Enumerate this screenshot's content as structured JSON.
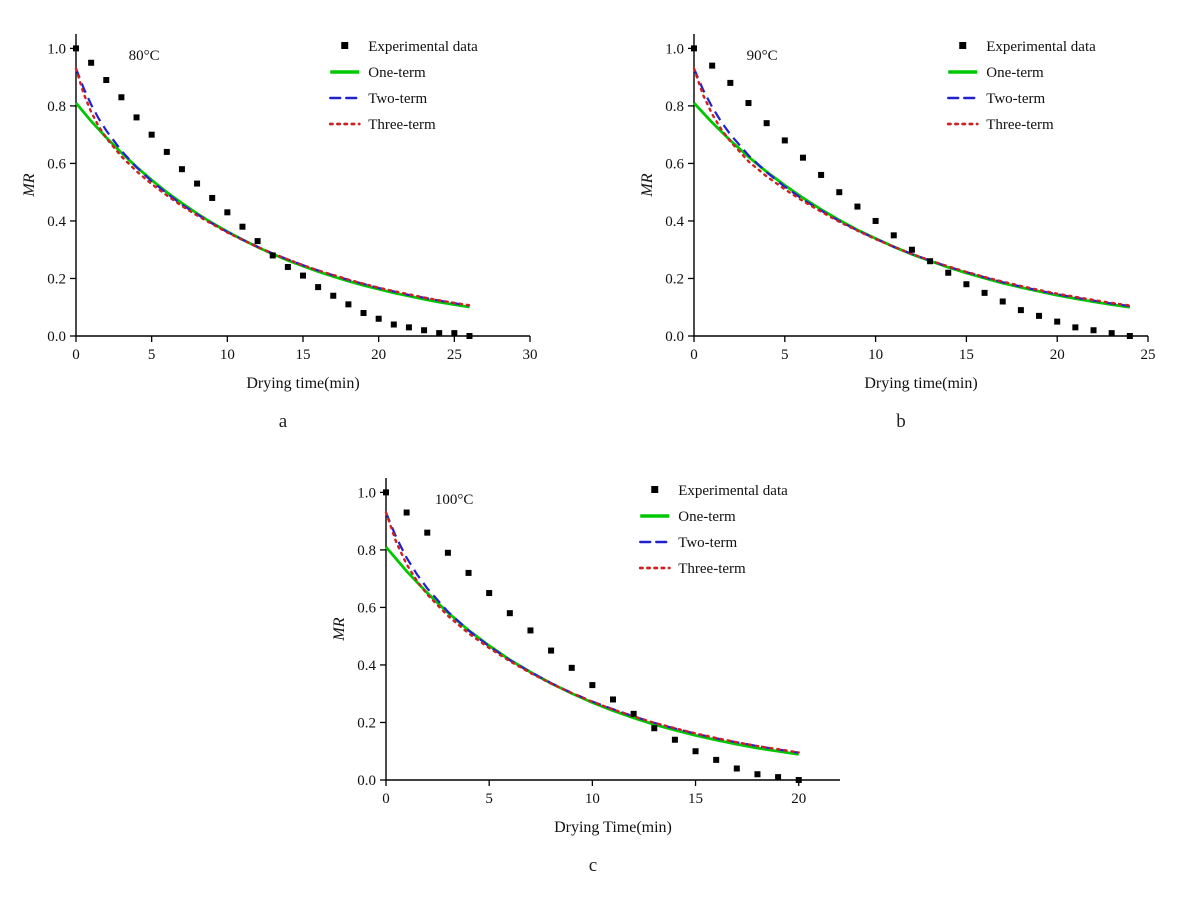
{
  "figure": {
    "panel_letters": [
      "a",
      "b",
      "c"
    ]
  },
  "colors": {
    "experimental": "#000000",
    "one_term": "#00c800",
    "two_term": "#2222cc",
    "three_term": "#cc2222",
    "axis": "#000000"
  },
  "chart_data": [
    {
      "type": "line",
      "panel_label": "a",
      "temp_label": "80°C",
      "xlabel": "Drying time(min)",
      "ylabel": "MR",
      "xlim": [
        0,
        30
      ],
      "ylim": [
        0,
        1.05
      ],
      "xticks": [
        0,
        5,
        10,
        15,
        20,
        25,
        30
      ],
      "yticks": [
        0,
        0.2,
        0.4,
        0.6,
        0.8,
        1.0
      ],
      "legend": [
        {
          "label": "Experimental data",
          "type": "marker"
        },
        {
          "label": "One-term",
          "type": "solid"
        },
        {
          "label": "Two-term",
          "type": "dashed"
        },
        {
          "label": "Three-term",
          "type": "dotted"
        }
      ],
      "series": {
        "experimental": {
          "x": [
            0,
            1,
            2,
            3,
            4,
            5,
            6,
            7,
            8,
            9,
            10,
            11,
            12,
            13,
            14,
            15,
            16,
            17,
            18,
            19,
            20,
            21,
            22,
            23,
            24,
            25,
            26
          ],
          "y": [
            1.0,
            0.95,
            0.89,
            0.83,
            0.76,
            0.7,
            0.64,
            0.58,
            0.53,
            0.48,
            0.43,
            0.38,
            0.33,
            0.28,
            0.24,
            0.21,
            0.17,
            0.14,
            0.11,
            0.08,
            0.06,
            0.04,
            0.03,
            0.02,
            0.01,
            0.01,
            0.0
          ]
        },
        "one_term": {
          "x": [
            0,
            1,
            2,
            3,
            4,
            5,
            6,
            7,
            8,
            9,
            10,
            11,
            12,
            13,
            14,
            15,
            16,
            17,
            18,
            19,
            20,
            21,
            22,
            23,
            24,
            25,
            26
          ],
          "y": [
            0.81,
            0.747,
            0.69,
            0.637,
            0.588,
            0.542,
            0.5,
            0.462,
            0.426,
            0.393,
            0.363,
            0.335,
            0.309,
            0.285,
            0.263,
            0.243,
            0.224,
            0.207,
            0.191,
            0.176,
            0.163,
            0.15,
            0.139,
            0.128,
            0.118,
            0.109,
            0.101
          ]
        },
        "two_term": {
          "x": [
            0,
            0.5,
            1,
            1.5,
            2,
            3,
            4,
            5,
            6,
            7,
            8,
            9,
            10,
            11,
            12,
            13,
            14,
            15,
            16,
            17,
            18,
            19,
            20,
            21,
            22,
            23,
            24,
            25,
            26
          ],
          "y": [
            0.93,
            0.862,
            0.805,
            0.756,
            0.714,
            0.644,
            0.587,
            0.538,
            0.496,
            0.457,
            0.423,
            0.391,
            0.362,
            0.335,
            0.31,
            0.287,
            0.266,
            0.246,
            0.228,
            0.211,
            0.195,
            0.181,
            0.167,
            0.155,
            0.143,
            0.133,
            0.123,
            0.114,
            0.105
          ]
        },
        "three_term": {
          "x": [
            0,
            0.5,
            1,
            1.5,
            2,
            3,
            4,
            5,
            6,
            7,
            8,
            9,
            10,
            11,
            12,
            13,
            14,
            15,
            16,
            17,
            18,
            19,
            20,
            21,
            22,
            23,
            24,
            25,
            26
          ],
          "y": [
            0.93,
            0.843,
            0.779,
            0.729,
            0.688,
            0.624,
            0.573,
            0.528,
            0.489,
            0.452,
            0.419,
            0.389,
            0.36,
            0.334,
            0.309,
            0.287,
            0.266,
            0.246,
            0.228,
            0.212,
            0.196,
            0.182,
            0.168,
            0.156,
            0.145,
            0.134,
            0.124,
            0.115,
            0.107
          ]
        }
      }
    },
    {
      "type": "line",
      "panel_label": "b",
      "temp_label": "90°C",
      "xlabel": "Drying time(min)",
      "ylabel": "MR",
      "xlim": [
        0,
        25
      ],
      "ylim": [
        0,
        1.05
      ],
      "xticks": [
        0,
        5,
        10,
        15,
        20,
        25
      ],
      "yticks": [
        0,
        0.2,
        0.4,
        0.6,
        0.8,
        1.0
      ],
      "legend": [
        {
          "label": "Experimental data",
          "type": "marker"
        },
        {
          "label": "One-term",
          "type": "solid"
        },
        {
          "label": "Two-term",
          "type": "dashed"
        },
        {
          "label": "Three-term",
          "type": "dotted"
        }
      ],
      "series": {
        "experimental": {
          "x": [
            0,
            1,
            2,
            3,
            4,
            5,
            6,
            7,
            8,
            9,
            10,
            11,
            12,
            13,
            14,
            15,
            16,
            17,
            18,
            19,
            20,
            21,
            22,
            23,
            24
          ],
          "y": [
            1.0,
            0.94,
            0.88,
            0.81,
            0.74,
            0.68,
            0.62,
            0.56,
            0.5,
            0.45,
            0.4,
            0.35,
            0.3,
            0.26,
            0.22,
            0.18,
            0.15,
            0.12,
            0.09,
            0.07,
            0.05,
            0.03,
            0.02,
            0.01,
            0.0
          ]
        },
        "one_term": {
          "x": [
            0,
            1,
            2,
            3,
            4,
            5,
            6,
            7,
            8,
            9,
            10,
            11,
            12,
            13,
            14,
            15,
            16,
            17,
            18,
            19,
            20,
            21,
            22,
            23,
            24
          ],
          "y": [
            0.81,
            0.742,
            0.68,
            0.623,
            0.571,
            0.524,
            0.48,
            0.44,
            0.403,
            0.369,
            0.339,
            0.31,
            0.284,
            0.261,
            0.239,
            0.219,
            0.201,
            0.184,
            0.169,
            0.155,
            0.142,
            0.13,
            0.119,
            0.109,
            0.1
          ]
        },
        "two_term": {
          "x": [
            0,
            0.5,
            1,
            1.5,
            2,
            3,
            4,
            5,
            6,
            7,
            8,
            9,
            10,
            11,
            12,
            13,
            14,
            15,
            16,
            17,
            18,
            19,
            20,
            21,
            22,
            23,
            24
          ],
          "y": [
            0.93,
            0.856,
            0.796,
            0.745,
            0.701,
            0.628,
            0.569,
            0.519,
            0.475,
            0.436,
            0.4,
            0.367,
            0.338,
            0.31,
            0.285,
            0.262,
            0.241,
            0.222,
            0.204,
            0.187,
            0.172,
            0.158,
            0.145,
            0.134,
            0.123,
            0.113,
            0.104
          ]
        },
        "three_term": {
          "x": [
            0,
            0.5,
            1,
            1.5,
            2,
            3,
            4,
            5,
            6,
            7,
            8,
            9,
            10,
            11,
            12,
            13,
            14,
            15,
            16,
            17,
            18,
            19,
            20,
            21,
            22,
            23,
            24
          ],
          "y": [
            0.93,
            0.838,
            0.771,
            0.719,
            0.677,
            0.607,
            0.555,
            0.51,
            0.469,
            0.432,
            0.397,
            0.366,
            0.337,
            0.31,
            0.285,
            0.263,
            0.242,
            0.223,
            0.205,
            0.189,
            0.174,
            0.16,
            0.147,
            0.136,
            0.125,
            0.115,
            0.106
          ]
        }
      }
    },
    {
      "type": "line",
      "panel_label": "c",
      "temp_label": "100°C",
      "xlabel": "Drying Time(min)",
      "ylabel": "MR",
      "xlim": [
        0,
        22
      ],
      "ylim": [
        0,
        1.05
      ],
      "xticks": [
        0,
        5,
        10,
        15,
        20
      ],
      "yticks": [
        0,
        0.2,
        0.4,
        0.6,
        0.8,
        1.0
      ],
      "legend": [
        {
          "label": "Experimental data",
          "type": "marker"
        },
        {
          "label": "One-term",
          "type": "solid"
        },
        {
          "label": "Two-term",
          "type": "dashed"
        },
        {
          "label": "Three-term",
          "type": "dotted"
        }
      ],
      "series": {
        "experimental": {
          "x": [
            0,
            1,
            2,
            3,
            4,
            5,
            6,
            7,
            8,
            9,
            10,
            11,
            12,
            13,
            14,
            15,
            16,
            17,
            18,
            19,
            20
          ],
          "y": [
            1.0,
            0.93,
            0.86,
            0.79,
            0.72,
            0.65,
            0.58,
            0.52,
            0.45,
            0.39,
            0.33,
            0.28,
            0.23,
            0.18,
            0.14,
            0.1,
            0.07,
            0.04,
            0.02,
            0.01,
            0.0
          ]
        },
        "one_term": {
          "x": [
            0,
            1,
            2,
            3,
            4,
            5,
            6,
            7,
            8,
            9,
            10,
            11,
            12,
            13,
            14,
            15,
            16,
            17,
            18,
            19,
            20
          ],
          "y": [
            0.81,
            0.726,
            0.65,
            0.582,
            0.521,
            0.467,
            0.418,
            0.375,
            0.336,
            0.301,
            0.269,
            0.241,
            0.216,
            0.193,
            0.173,
            0.155,
            0.139,
            0.124,
            0.111,
            0.1,
            0.089
          ]
        },
        "two_term": {
          "x": [
            0,
            0.5,
            1,
            1.5,
            2,
            3,
            4,
            5,
            6,
            7,
            8,
            9,
            10,
            11,
            12,
            13,
            14,
            15,
            16,
            17,
            18,
            19,
            20
          ],
          "y": [
            0.93,
            0.843,
            0.773,
            0.715,
            0.666,
            0.585,
            0.52,
            0.465,
            0.417,
            0.375,
            0.337,
            0.303,
            0.273,
            0.246,
            0.221,
            0.199,
            0.179,
            0.161,
            0.145,
            0.131,
            0.118,
            0.106,
            0.095
          ]
        },
        "three_term": {
          "x": [
            0,
            0.5,
            1,
            1.5,
            2,
            3,
            4,
            5,
            6,
            7,
            8,
            9,
            10,
            11,
            12,
            13,
            14,
            15,
            16,
            17,
            18,
            19,
            20
          ],
          "y": [
            0.93,
            0.826,
            0.75,
            0.692,
            0.645,
            0.571,
            0.51,
            0.459,
            0.413,
            0.372,
            0.335,
            0.302,
            0.272,
            0.245,
            0.221,
            0.199,
            0.18,
            0.162,
            0.146,
            0.131,
            0.118,
            0.107,
            0.096
          ]
        }
      }
    }
  ]
}
